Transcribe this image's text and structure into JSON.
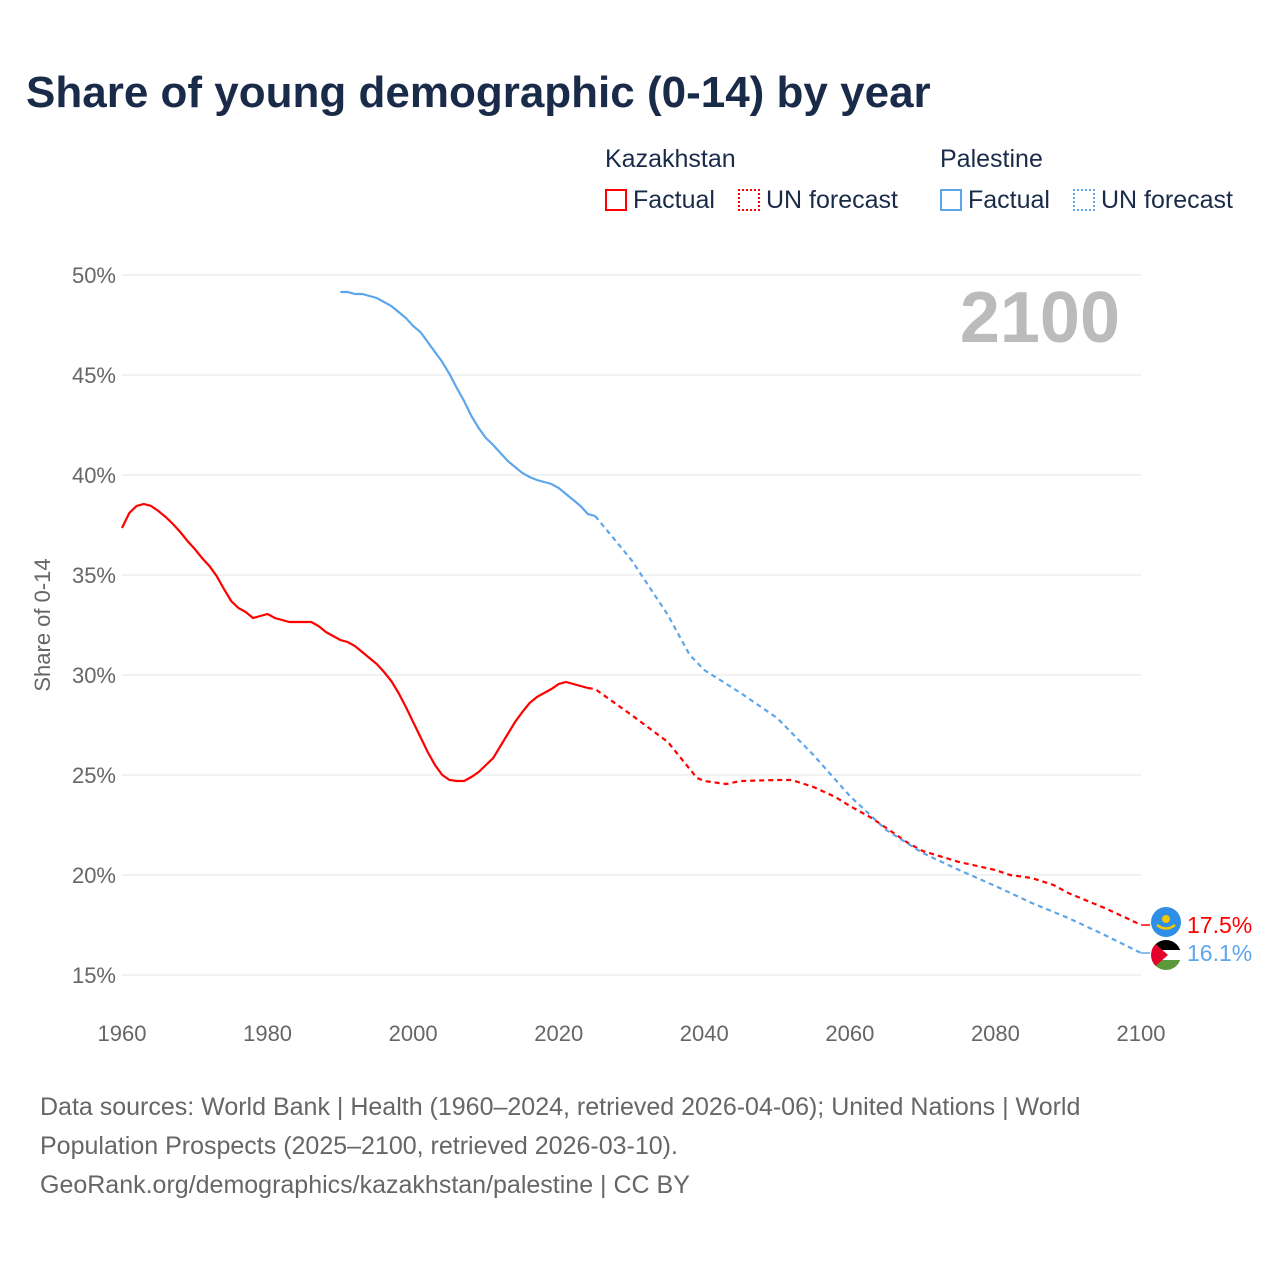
{
  "chart_data": {
    "type": "line",
    "title": "Share of young demographic (0-14) by year",
    "ylabel": "Share of 0-14",
    "xlim": [
      1960,
      2100
    ],
    "ylim": [
      15,
      50
    ],
    "x_ticks": [
      "1960",
      "1980",
      "2000",
      "2020",
      "2040",
      "2060",
      "2080",
      "2100"
    ],
    "y_ticks": [
      "15%",
      "20%",
      "25%",
      "30%",
      "35%",
      "40%",
      "45%",
      "50%"
    ],
    "year_label": "2100",
    "legend": {
      "groups": [
        {
          "name": "Kazakhstan",
          "items": [
            "Factual",
            "UN forecast"
          ]
        },
        {
          "name": "Palestine",
          "items": [
            "Factual",
            "UN forecast"
          ]
        }
      ]
    },
    "series": [
      {
        "name": "Kazakhstan",
        "color": "#ff0000",
        "end_label": "17.5%",
        "factual": {
          "start": 1960,
          "values": [
            37.35,
            38.1,
            38.45,
            38.55,
            38.45,
            38.2,
            37.9,
            37.55,
            37.15,
            36.7,
            36.3,
            35.85,
            35.45,
            34.95,
            34.3,
            33.7,
            33.35,
            33.15,
            32.85,
            32.95,
            33.05,
            32.85,
            32.75,
            32.65,
            32.65,
            32.65,
            32.65,
            32.45,
            32.15,
            31.95,
            31.75,
            31.65,
            31.45,
            31.15,
            30.85,
            30.55,
            30.15,
            29.7,
            29.1,
            28.4,
            27.65,
            26.9,
            26.15,
            25.5,
            25.0,
            24.75,
            24.7,
            24.7,
            24.9,
            25.15,
            25.5,
            25.85,
            26.45,
            27.05,
            27.65,
            28.15,
            28.6,
            28.9,
            29.1,
            29.3,
            29.55,
            29.65,
            29.55,
            29.45,
            29.35
          ]
        },
        "forecast": {
          "x": [
            2024,
            2025,
            2030,
            2035,
            2039,
            2040,
            2043,
            2045,
            2050,
            2052,
            2055,
            2058,
            2060,
            2063,
            2065,
            2068,
            2070,
            2075,
            2080,
            2082,
            2085,
            2088,
            2090,
            2092,
            2095,
            2098,
            2100
          ],
          "values": [
            29.35,
            29.3,
            28.0,
            26.65,
            24.85,
            24.7,
            24.55,
            24.7,
            24.75,
            24.75,
            24.4,
            23.9,
            23.45,
            22.85,
            22.35,
            21.6,
            21.2,
            20.65,
            20.25,
            20.0,
            19.85,
            19.5,
            19.1,
            18.8,
            18.35,
            17.85,
            17.5
          ]
        }
      },
      {
        "name": "Palestine",
        "color": "#5ea6ea",
        "end_label": "16.1%",
        "factual": {
          "start": 1990,
          "values": [
            49.15,
            49.15,
            49.05,
            49.05,
            48.95,
            48.85,
            48.65,
            48.45,
            48.15,
            47.85,
            47.45,
            47.15,
            46.65,
            46.15,
            45.65,
            45.05,
            44.35,
            43.7,
            42.95,
            42.35,
            41.85,
            41.5,
            41.1,
            40.7,
            40.4,
            40.1,
            39.9,
            39.75,
            39.65,
            39.55,
            39.35,
            39.05,
            38.75,
            38.45,
            38.05,
            37.95
          ]
        },
        "forecast": {
          "x": [
            2025,
            2030,
            2035,
            2038,
            2040,
            2045,
            2050,
            2055,
            2060,
            2065,
            2070,
            2075,
            2080,
            2085,
            2090,
            2095,
            2100
          ],
          "values": [
            37.95,
            35.75,
            33.0,
            31.0,
            30.25,
            29.1,
            27.85,
            26.0,
            23.95,
            22.25,
            21.1,
            20.25,
            19.45,
            18.6,
            17.85,
            17.0,
            16.1
          ]
        }
      }
    ]
  },
  "footer": {
    "line1": "Data sources: World Bank | Health (1960–2024, retrieved 2026-04-06); United Nations | World Population Prospects (2025–2100, retrieved 2026-03-10).",
    "line2": "GeoRank.org/demographics/kazakhstan/palestine | CC BY"
  }
}
